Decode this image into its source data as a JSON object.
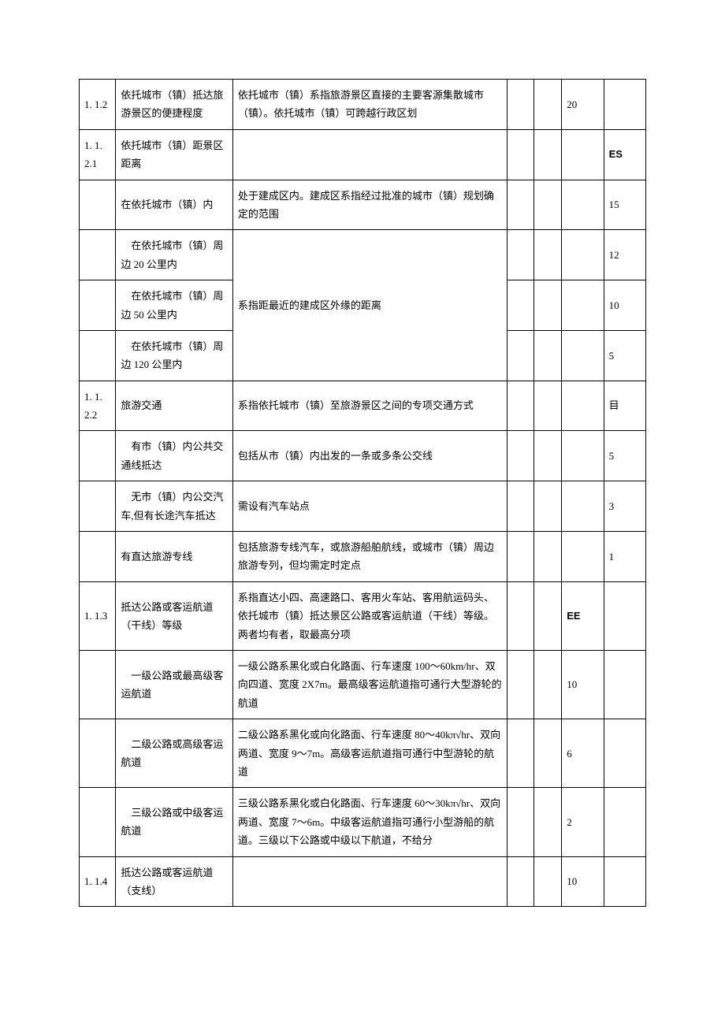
{
  "rows": [
    {
      "id": "1. 1.2",
      "item": "依托城市（镇）抵达旅游景区的便捷程度",
      "desc": "依托城市（镇）系指旅游景区直接的主要客源集散城市（镇）。依托城市（镇）可跨越行政区划",
      "s1": "20",
      "s2": ""
    },
    {
      "id": "1. 1. 2.1",
      "item": "依托城市（镇）距景区距离",
      "desc": "",
      "s1": "",
      "s2": "ES",
      "s2Bold": true
    },
    {
      "id": "",
      "item": "在依托城市（镇）内",
      "desc": "处于建成区内。建成区系指经过批准的城市（镇）规划确定的范围",
      "s1": "",
      "s2": "15"
    },
    {
      "id": "",
      "item": "　在依托城市（镇）周边 20 公里内",
      "desc": "",
      "s1": "",
      "s2": "12",
      "mergeDescStart": true
    },
    {
      "id": "",
      "item": "　在依托城市（镇）周边 50 公里内",
      "desc": "系指距最近的建成区外缘的距离",
      "s1": "",
      "s2": "10",
      "mergeDescMiddle": true
    },
    {
      "id": "",
      "item": "　在依托城市（镇）周边 120 公里内",
      "desc": "",
      "s1": "",
      "s2": "5",
      "mergeDescEnd": true
    },
    {
      "id": "1. 1. 2.2",
      "item": "旅游交通",
      "desc": "系指依托城市（镇）至旅游景区之间的专项交通方式",
      "s1": "",
      "s2": "目"
    },
    {
      "id": "",
      "item": "　有市（镇）内公共交通线抵达",
      "desc": "包括从市（镇）内出发的一条或多条公交线",
      "s1": "",
      "s2": "5"
    },
    {
      "id": "",
      "item": "　无市（镇）内公交汽车,但有长途汽车抵达",
      "desc": "需设有汽车站点",
      "s1": "",
      "s2": "3"
    },
    {
      "id": "",
      "item": "有直达旅游专线",
      "desc": "包括旅游专线汽车，或旅游船舶航线，或城市（镇）周边旅游专列，但均需定时定点",
      "s1": "",
      "s2": "1"
    },
    {
      "id": "1. 1.3",
      "item": "抵达公路或客运航道（干线）等级",
      "desc": "系指直达小四、高速路口、客用火车站、客用航运码头、依托城市（镇）抵达景区公路或客运航道（干线）等级。两者均有者，取最高分项",
      "s1": "EE",
      "s1Bold": true,
      "s2": ""
    },
    {
      "id": "",
      "item": "　一级公路或最高级客运航道",
      "desc": "一级公路系黑化或白化路面、行车速度 100～60km/hr、双向四道、宽度 2X7m。最高级客运航道指可通行大型游轮的航道",
      "s1": "10",
      "s2": ""
    },
    {
      "id": "",
      "item": "　二级公路或高级客运航道",
      "desc": "二级公路系黑化或向化路面、行车速度 80～40kπ√hr、双向两道、宽度 9～7m。高级客运航道指可通行中型游轮的航道",
      "s1": "6",
      "s2": ""
    },
    {
      "id": "",
      "item": "　三级公路或中级客运航道",
      "desc": "三级公路系黑化或白化路面、行车速度 60～30kπ√hr、双向两道、宽度 7～6m。中级客运航道指可通行小型游船的航道。三级以下公路或中级以下航道，不给分",
      "s1": "2",
      "s2": ""
    },
    {
      "id": "1. 1.4",
      "item": "抵达公路或客运航道（支线）",
      "desc": "",
      "s1": "10",
      "s2": ""
    }
  ]
}
